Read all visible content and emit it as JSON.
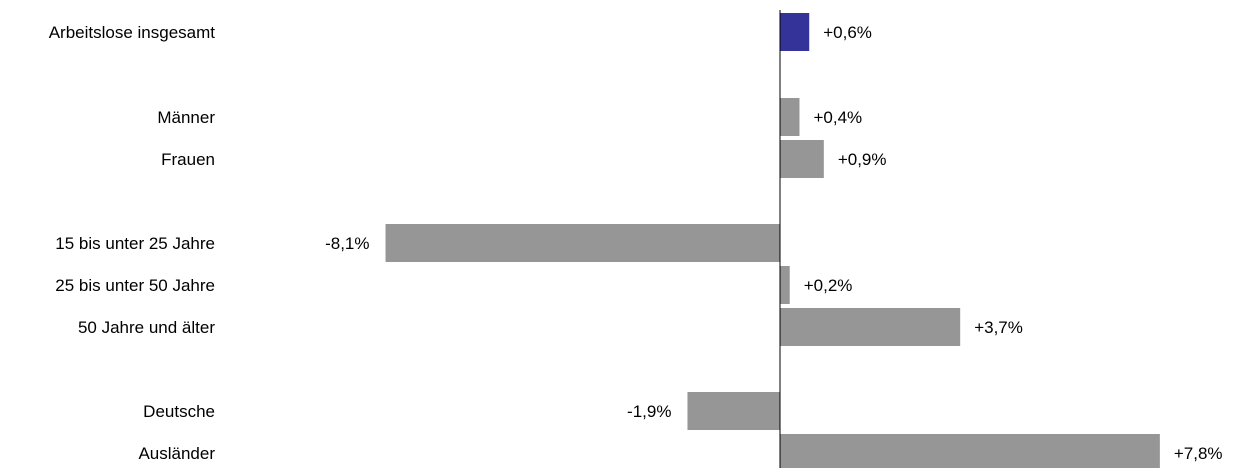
{
  "chart_data": {
    "type": "bar",
    "orientation": "horizontal",
    "categories": [
      "Arbeitslose insgesamt",
      "Männer",
      "Frauen",
      "15 bis unter 25 Jahre",
      "25 bis unter 50 Jahre",
      "50 Jahre und älter",
      "Deutsche",
      "Ausländer"
    ],
    "values": [
      0.6,
      0.4,
      0.9,
      -8.1,
      0.2,
      3.7,
      -1.9,
      7.8
    ],
    "labels": [
      "+0,6%",
      "+0,4%",
      "+0,9%",
      "-8,1%",
      "+0,2%",
      "+3,7%",
      "-1,9%",
      "+7,8%"
    ],
    "highlight_index": 0,
    "colors": {
      "highlight": "#333399",
      "bar": "#969696",
      "axis": "#000000"
    },
    "grid": false,
    "legend": "none",
    "title": "",
    "xlabel": "",
    "ylabel": ""
  }
}
